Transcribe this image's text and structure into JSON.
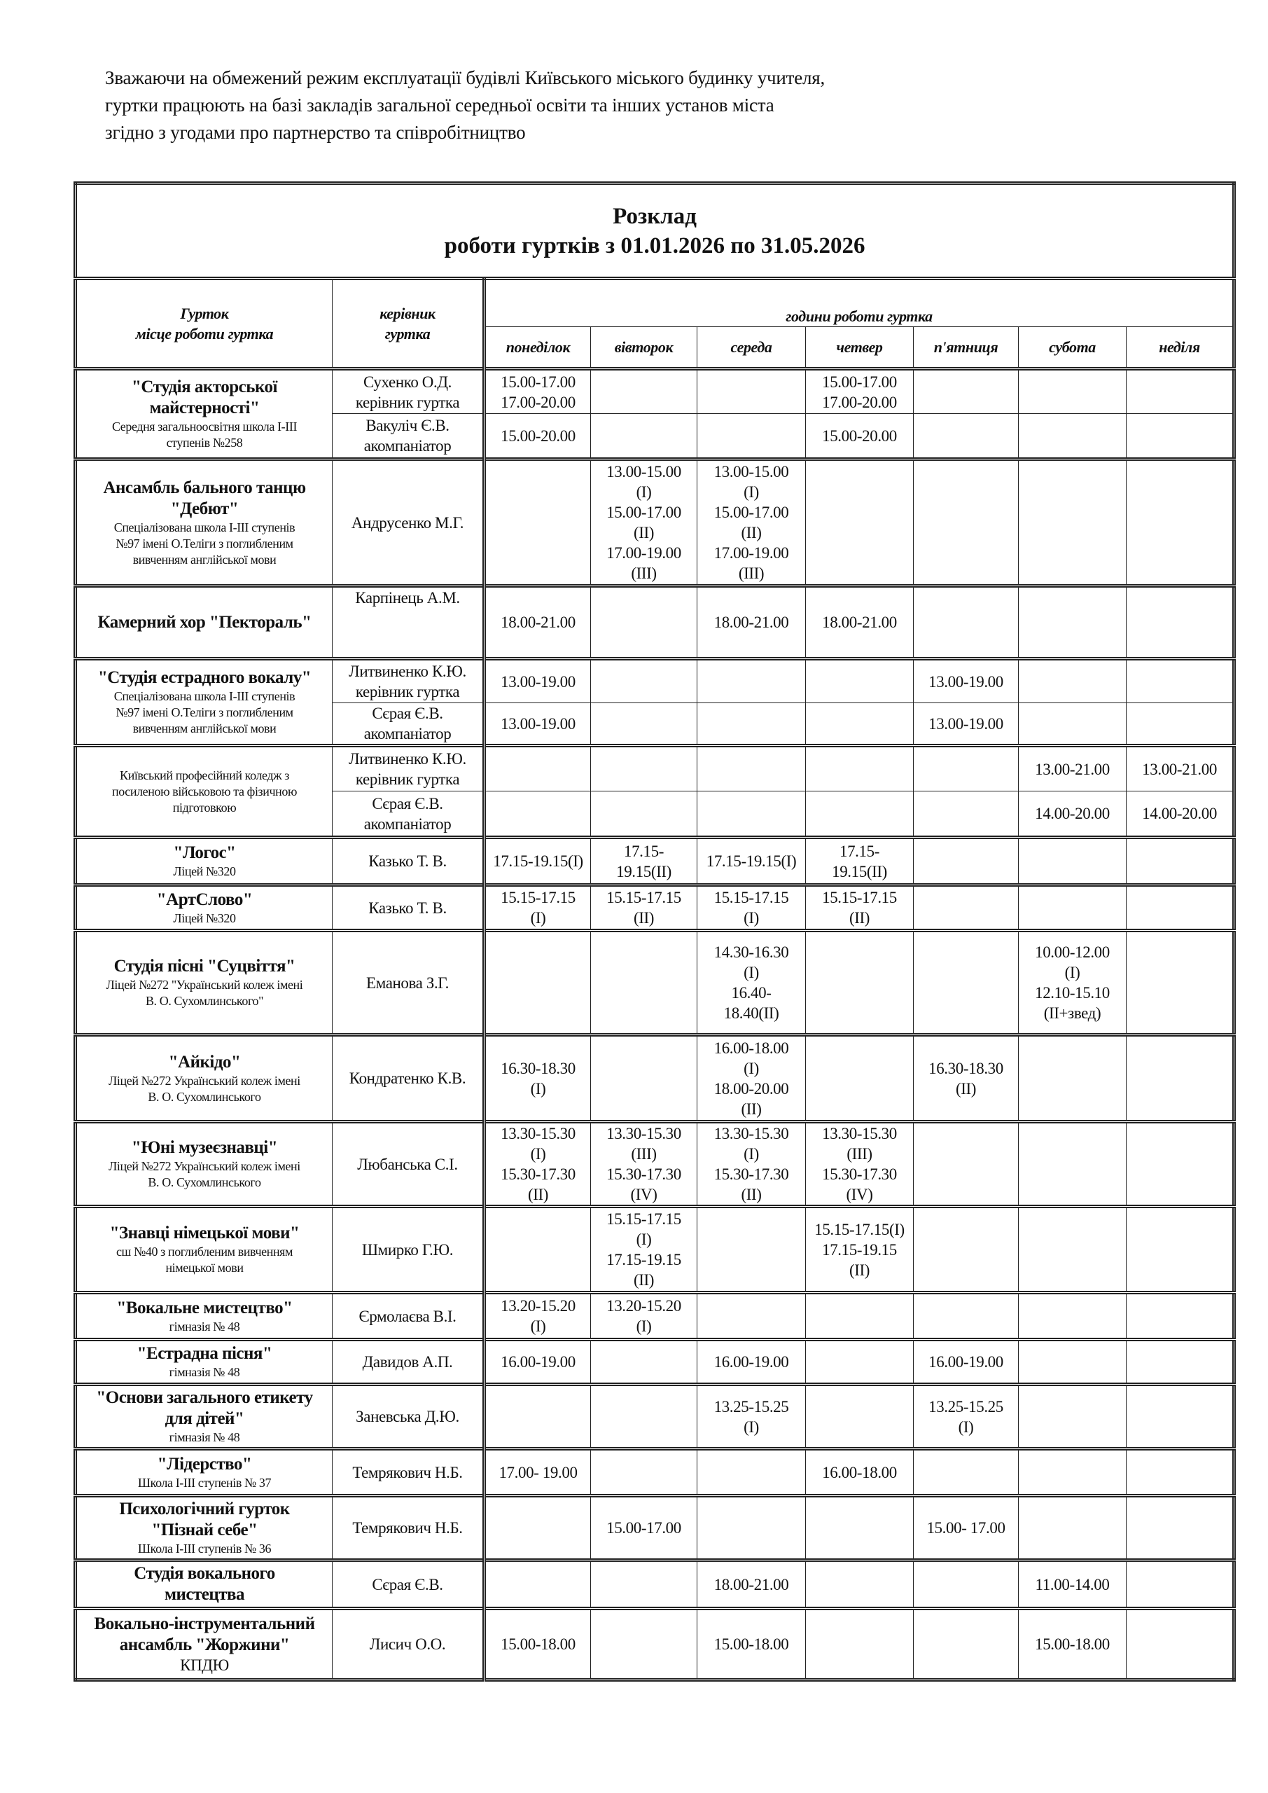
{
  "intro": [
    "Зважаючи на обмежений режим експлуатації будівлі Київського міського будинку учителя,",
    "гуртки працюють на базі закладів загальної середньої освіти та інших установ міста",
    "згідно з угодами про партнерство та співробітництво"
  ],
  "title": {
    "line1": "Розклад",
    "line2": "роботи гуртків з 01.01.2026 по 31.05.2026"
  },
  "header": {
    "group": "Гурток\nмісце роботи гуртка",
    "leader": "керівник\nгуртка",
    "hours": "години  роботи гуртка",
    "days": [
      "понеділок",
      "вівторок",
      "середа",
      "четвер",
      "п'ятниця",
      "субота",
      "неділя"
    ]
  },
  "groups": [
    {
      "name": "\"Студія акторської\nмайстерності\"",
      "location": "Середня загальноосвітня школа I-III\nступенів №258",
      "leaders": [
        {
          "name": "Сухенко О.Д.\nкерівник гуртка",
          "days": [
            "15.00-17.00\n17.00-20.00",
            "",
            "",
            "15.00-17.00\n17.00-20.00",
            "",
            "",
            ""
          ]
        },
        {
          "name": "Вакуліч Є.В.\nакомпаніатор",
          "days": [
            "15.00-20.00",
            "",
            "",
            "15.00-20.00",
            "",
            "",
            ""
          ]
        }
      ]
    },
    {
      "name": "Ансамбль бального танцю\n\"Дебют\"",
      "location": "Спеціалізована школа I-III ступенів\n№97 імені О.Теліги з поглибленим\nвивченням англійської мови",
      "leaders": [
        {
          "name": "Андрусенко М.Г.",
          "days": [
            "",
            "13.00-15.00\n(I)\n15.00-17.00\n(II)\n17.00-19.00\n(III)",
            "13.00-15.00\n(I)\n15.00-17.00\n(II)\n17.00-19.00\n(III)",
            "",
            "",
            "",
            ""
          ]
        }
      ]
    },
    {
      "name": "Камерний хор \"Пектораль\"",
      "location": "",
      "leaders": [
        {
          "name": "Карпінець А.М.",
          "days": [
            "18.00-21.00",
            "",
            "18.00-21.00",
            "18.00-21.00",
            "",
            "",
            ""
          ]
        }
      ]
    },
    {
      "name": "\"Студія естрадного вокалу\"",
      "location": "Спеціалізована школа I-III ступенів\n№97 імені О.Теліги з поглибленим\nвивченням англійської мови",
      "leaders": [
        {
          "name": "Литвиненко К.Ю.\nкерівник гуртка",
          "days": [
            "13.00-19.00",
            "",
            "",
            "",
            "13.00-19.00",
            "",
            ""
          ]
        },
        {
          "name": "Сєрая Є.В.\nакомпаніатор",
          "days": [
            "13.00-19.00",
            "",
            "",
            "",
            "13.00-19.00",
            "",
            ""
          ]
        }
      ]
    },
    {
      "name": "",
      "location": "Київський професійний коледж з\nпосиленою військовою та фізичною\nпідготовкою",
      "leaders": [
        {
          "name": "Литвиненко К.Ю.\nкерівник гуртка",
          "days": [
            "",
            "",
            "",
            "",
            "",
            "13.00-21.00",
            "13.00-21.00"
          ]
        },
        {
          "name": "Сєрая Є.В.\nакомпаніатор",
          "days": [
            "",
            "",
            "",
            "",
            "",
            "14.00-20.00",
            "14.00-20.00"
          ]
        }
      ]
    },
    {
      "name": "\"Логос\"",
      "location": "Ліцей №320",
      "leaders": [
        {
          "name": "Казько Т. В.",
          "days": [
            "17.15-19.15(I)",
            "17.15-\n19.15(II)",
            "17.15-19.15(I)",
            "17.15-\n19.15(II)",
            "",
            "",
            ""
          ]
        }
      ]
    },
    {
      "name": "\"АртСлово\"",
      "location": "Ліцей №320",
      "leaders": [
        {
          "name": "Казько Т. В.",
          "days": [
            "15.15-17.15\n(I)",
            "15.15-17.15\n(II)",
            "15.15-17.15\n(I)",
            "15.15-17.15\n(II)",
            "",
            "",
            ""
          ]
        }
      ]
    },
    {
      "name": "Студія пісні \"Суцвіття\"",
      "location": "Ліцей №272 \"Український колеж імені\nВ. О. Сухомлинського\"",
      "leaders": [
        {
          "name": "Еманова З.Г.",
          "days": [
            "",
            "",
            "14.30-16.30\n(I)\n16.40-\n18.40(II)",
            "",
            "",
            "10.00-12.00\n(I)\n12.10-15.10\n(II+звед)",
            ""
          ]
        }
      ]
    },
    {
      "name": "\"Айкідо\"",
      "location": "Ліцей №272 Український колеж імені\nВ. О. Сухомлинського",
      "leaders": [
        {
          "name": "Кондратенко К.В.",
          "days": [
            "16.30-18.30\n(I)",
            "",
            "16.00-18.00\n(I)\n18.00-20.00\n(II)",
            "",
            "16.30-18.30\n(II)",
            "",
            ""
          ]
        }
      ]
    },
    {
      "name": "\"Юні музеєзнавці\"",
      "location": "Ліцей №272 Український колеж імені\nВ. О. Сухомлинського",
      "leaders": [
        {
          "name": "Любанська С.І.",
          "days": [
            "13.30-15.30\n(I)\n15.30-17.30\n(II)",
            "13.30-15.30\n(III)\n15.30-17.30\n(IV)",
            "13.30-15.30\n(I)\n15.30-17.30\n(II)",
            "13.30-15.30\n(III)\n15.30-17.30\n(IV)",
            "",
            "",
            ""
          ]
        }
      ]
    },
    {
      "name": "\"Знавці німецької мови\"",
      "location": "сш №40 з поглибленим вивченням\nнімецької мови",
      "leaders": [
        {
          "name": "Шмирко Г.Ю.",
          "days": [
            "",
            "15.15-17.15\n(I)\n17.15-19.15\n(II)",
            "",
            "15.15-17.15(I)\n17.15-19.15\n(II)",
            "",
            "",
            ""
          ]
        }
      ]
    },
    {
      "name": "\"Вокальне мистецтво\"",
      "location": "гімназія № 48",
      "leaders": [
        {
          "name": "Єрмолаєва В.І.",
          "days": [
            "13.20-15.20\n(I)",
            "13.20-15.20\n(I)",
            "",
            "",
            "",
            "",
            ""
          ]
        }
      ]
    },
    {
      "name": "\"Естрадна пісня\"",
      "location": "гімназія № 48",
      "leaders": [
        {
          "name": "Давидов А.П.",
          "days": [
            "16.00-19.00",
            "",
            "16.00-19.00",
            "",
            "16.00-19.00",
            "",
            ""
          ]
        }
      ]
    },
    {
      "name": "\"Основи загального етикету\nдля дітей\"",
      "location": "гімназія № 48",
      "leaders": [
        {
          "name": "Заневська Д.Ю.",
          "days": [
            "",
            "",
            "13.25-15.25\n(I)",
            "",
            "13.25-15.25\n(I)",
            "",
            ""
          ]
        }
      ]
    },
    {
      "name": "\"Лідерство\"",
      "location": "Школа I-III ступенів № 37",
      "leaders": [
        {
          "name": "Темрякович Н.Б.",
          "days": [
            "17.00- 19.00",
            "",
            "",
            "16.00-18.00",
            "",
            "",
            ""
          ]
        }
      ]
    },
    {
      "name": "Психологічний гурток\n\"Пізнай себе\"",
      "location": "Школа I-III ступенів № 36",
      "leaders": [
        {
          "name": "Темрякович Н.Б.",
          "days": [
            "",
            "15.00-17.00",
            "",
            "",
            "15.00- 17.00",
            "",
            ""
          ]
        }
      ]
    },
    {
      "name": "Студія вокального\nмистецтва",
      "location": "",
      "leaders": [
        {
          "name": "Сєрая Є.В.",
          "days": [
            "",
            "",
            "18.00-21.00",
            "",
            "",
            "11.00-14.00",
            ""
          ]
        }
      ]
    },
    {
      "name": "Вокально-інструментальний\nансамбль \"Жоржини\"",
      "location": "КПДЮ",
      "leaders": [
        {
          "name": "Лисич О.О.",
          "days": [
            "15.00-18.00",
            "",
            "15.00-18.00",
            "",
            "",
            "15.00-18.00",
            ""
          ]
        }
      ]
    }
  ]
}
